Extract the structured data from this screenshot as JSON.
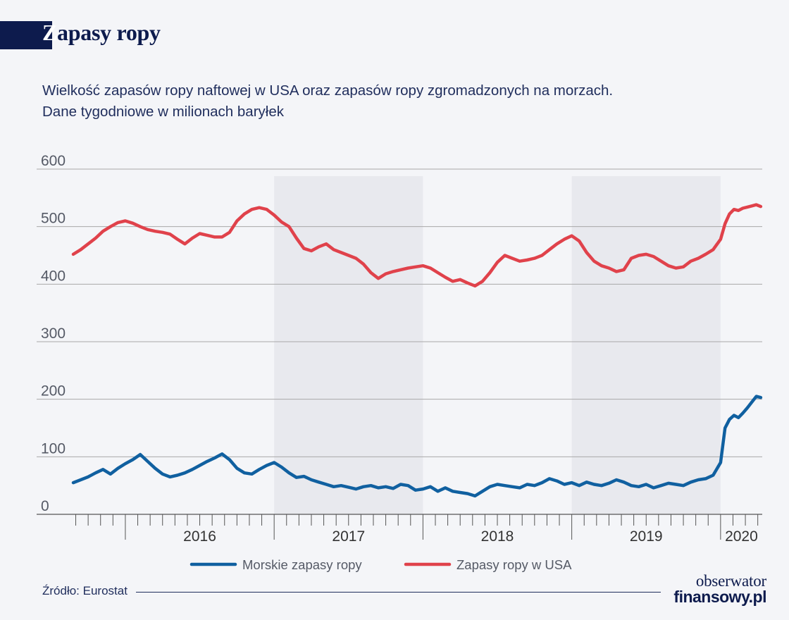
{
  "header": {
    "title_first": "Z",
    "title_rest": "apasy ropy",
    "subtitle_line1": "Wielkość zapasów ropy naftowej w USA oraz zapasów ropy zgromadzonych na morzach.",
    "subtitle_line2": "Dane tygodniowe w milionach baryłek"
  },
  "footer": {
    "source": "Źródło: Eurostat",
    "logo_line1": "obserwator",
    "logo_line2": "finansowy.pl"
  },
  "colors": {
    "navy": "#0d1b4d",
    "series_sea": "#1060a0",
    "series_usa": "#e0424b",
    "shade": "#e8e9ee",
    "grid": "#a8a8a8"
  },
  "chart_data": {
    "type": "line",
    "title": "Zapasy ropy",
    "xlabel": "",
    "ylabel": "",
    "ylim": [
      0,
      600
    ],
    "xlim": [
      2015.65,
      2020.28
    ],
    "y_ticks": [
      "0",
      "100",
      "200",
      "300",
      "400",
      "500",
      "600"
    ],
    "y_tick_values": [
      0,
      100,
      200,
      300,
      400,
      500,
      600
    ],
    "year_labels": [
      "2016",
      "2017",
      "2018",
      "2019",
      "2020"
    ],
    "year_label_x": [
      2016.0,
      2017.0,
      2018.0,
      2019.0,
      2020.0
    ],
    "shaded_years": [
      2017,
      2019
    ],
    "legend_position": "bottom",
    "series": [
      {
        "name": "Morskie zapasy ropy",
        "color": "#1060a0",
        "x": [
          2015.65,
          2015.7,
          2015.75,
          2015.8,
          2015.85,
          2015.9,
          2015.95,
          2016.0,
          2016.05,
          2016.1,
          2016.15,
          2016.2,
          2016.25,
          2016.3,
          2016.35,
          2016.4,
          2016.45,
          2016.5,
          2016.55,
          2016.6,
          2016.65,
          2016.7,
          2016.75,
          2016.8,
          2016.85,
          2016.9,
          2016.95,
          2017.0,
          2017.05,
          2017.1,
          2017.15,
          2017.2,
          2017.25,
          2017.3,
          2017.35,
          2017.4,
          2017.45,
          2017.5,
          2017.55,
          2017.6,
          2017.65,
          2017.7,
          2017.75,
          2017.8,
          2017.85,
          2017.9,
          2017.95,
          2018.0,
          2018.05,
          2018.1,
          2018.15,
          2018.2,
          2018.25,
          2018.3,
          2018.35,
          2018.4,
          2018.45,
          2018.5,
          2018.55,
          2018.6,
          2018.65,
          2018.7,
          2018.75,
          2018.8,
          2018.85,
          2018.9,
          2018.95,
          2019.0,
          2019.05,
          2019.1,
          2019.15,
          2019.2,
          2019.25,
          2019.3,
          2019.35,
          2019.4,
          2019.45,
          2019.5,
          2019.55,
          2019.6,
          2019.65,
          2019.7,
          2019.75,
          2019.8,
          2019.85,
          2019.9,
          2019.95,
          2020.0,
          2020.03,
          2020.06,
          2020.09,
          2020.12,
          2020.15,
          2020.18,
          2020.21,
          2020.24,
          2020.27
        ],
        "values": [
          55,
          60,
          65,
          72,
          78,
          70,
          80,
          88,
          95,
          104,
          92,
          80,
          70,
          65,
          68,
          72,
          78,
          85,
          92,
          98,
          105,
          95,
          80,
          72,
          70,
          78,
          85,
          90,
          82,
          72,
          64,
          66,
          60,
          56,
          52,
          48,
          50,
          47,
          44,
          48,
          50,
          46,
          48,
          45,
          52,
          50,
          42,
          44,
          48,
          40,
          46,
          40,
          38,
          36,
          32,
          40,
          48,
          52,
          50,
          48,
          46,
          52,
          50,
          55,
          62,
          58,
          52,
          55,
          50,
          56,
          52,
          50,
          54,
          60,
          56,
          50,
          48,
          52,
          46,
          50,
          54,
          52,
          50,
          56,
          60,
          62,
          68,
          90,
          150,
          165,
          172,
          168,
          176,
          185,
          195,
          205,
          203
        ]
      },
      {
        "name": "Zapasy ropy w USA",
        "color": "#e0424b",
        "x": [
          2015.65,
          2015.7,
          2015.75,
          2015.8,
          2015.85,
          2015.9,
          2015.95,
          2016.0,
          2016.05,
          2016.1,
          2016.15,
          2016.2,
          2016.25,
          2016.3,
          2016.35,
          2016.4,
          2016.45,
          2016.5,
          2016.55,
          2016.6,
          2016.65,
          2016.7,
          2016.75,
          2016.8,
          2016.85,
          2016.9,
          2016.95,
          2017.0,
          2017.05,
          2017.1,
          2017.15,
          2017.2,
          2017.25,
          2017.3,
          2017.35,
          2017.4,
          2017.45,
          2017.5,
          2017.55,
          2017.6,
          2017.65,
          2017.7,
          2017.75,
          2017.8,
          2017.85,
          2017.9,
          2017.95,
          2018.0,
          2018.05,
          2018.1,
          2018.15,
          2018.2,
          2018.25,
          2018.3,
          2018.35,
          2018.4,
          2018.45,
          2018.5,
          2018.55,
          2018.6,
          2018.65,
          2018.7,
          2018.75,
          2018.8,
          2018.85,
          2018.9,
          2018.95,
          2019.0,
          2019.05,
          2019.1,
          2019.15,
          2019.2,
          2019.25,
          2019.3,
          2019.35,
          2019.4,
          2019.45,
          2019.5,
          2019.55,
          2019.6,
          2019.65,
          2019.7,
          2019.75,
          2019.8,
          2019.85,
          2019.9,
          2019.95,
          2020.0,
          2020.03,
          2020.06,
          2020.09,
          2020.12,
          2020.15,
          2020.18,
          2020.21,
          2020.24,
          2020.27
        ],
        "values": [
          452,
          460,
          470,
          480,
          492,
          500,
          507,
          510,
          506,
          500,
          495,
          492,
          490,
          487,
          478,
          470,
          480,
          488,
          485,
          482,
          482,
          490,
          510,
          522,
          530,
          533,
          530,
          520,
          508,
          500,
          480,
          462,
          458,
          465,
          470,
          460,
          455,
          450,
          445,
          435,
          420,
          410,
          418,
          422,
          425,
          428,
          430,
          432,
          428,
          420,
          412,
          405,
          408,
          402,
          397,
          405,
          420,
          438,
          450,
          445,
          440,
          442,
          445,
          450,
          460,
          470,
          478,
          484,
          475,
          455,
          440,
          432,
          428,
          422,
          425,
          445,
          450,
          452,
          448,
          440,
          432,
          428,
          430,
          440,
          445,
          452,
          460,
          478,
          505,
          522,
          530,
          528,
          532,
          534,
          536,
          538,
          535
        ]
      }
    ]
  }
}
